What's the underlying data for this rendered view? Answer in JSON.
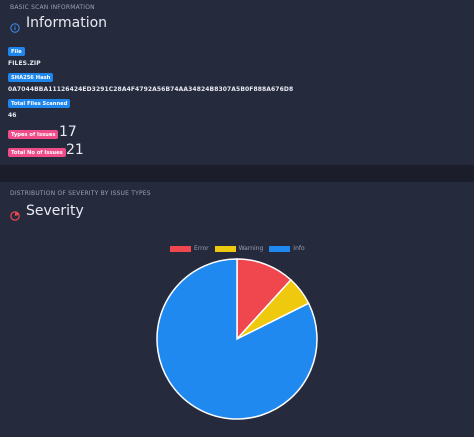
{
  "info_card": {
    "subheading": "BASIC SCAN INFORMATION",
    "title": "Information",
    "icon": "info-circle-icon",
    "fields": {
      "file_label": "File",
      "file_value": "FILES.ZIP",
      "sha_label": "SHA256 Hash",
      "sha_value": "0A7044BBA11126424ED3291C28A4F4792A56B74AA34824B8307A5B0F888A676D8",
      "total_files_label": "Total Files Scanned",
      "total_files_value": "46",
      "types_label": "Types of Issues",
      "types_value": "17",
      "total_issues_label": "Total No of Issues",
      "total_issues_value": "21"
    }
  },
  "severity_card": {
    "subheading": "DISTRIBUTION OF SEVERITY BY ISSUE TYPES",
    "title": "Severity",
    "icon": "severity-gauge-icon"
  },
  "colors": {
    "error": "#f0474f",
    "warning": "#efc90e",
    "info": "#2089f0",
    "badge_blue": "#1f86ee",
    "badge_pink": "#ef4c89"
  },
  "chart_data": {
    "type": "pie",
    "categories": [
      "Error",
      "Warning",
      "Info"
    ],
    "values": [
      2,
      1,
      14
    ],
    "legend_position": "top"
  }
}
